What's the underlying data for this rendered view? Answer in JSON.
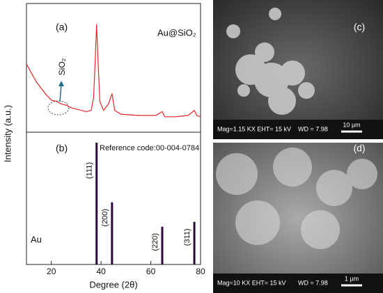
{
  "chart_data": [
    {
      "type": "line",
      "title": "(a)",
      "annotations": [
        "Au@SiO₂",
        "SiO₂"
      ],
      "color": "#e8262b",
      "x": [
        10,
        12,
        14,
        16,
        18,
        20,
        22,
        24,
        26,
        28,
        30,
        32,
        34,
        36,
        37,
        37.6,
        38.2,
        38.8,
        39.5,
        41,
        43,
        44.4,
        45.5,
        48,
        55,
        62,
        64.6,
        65.6,
        70,
        75,
        77.5,
        78.5,
        80
      ],
      "values": [
        53,
        46,
        39,
        34,
        29,
        25,
        24,
        22,
        21,
        19,
        18,
        17,
        16,
        17,
        27,
        54,
        84,
        54,
        24,
        17,
        22,
        30,
        17,
        14,
        13,
        13,
        16,
        12,
        12,
        13,
        17,
        13,
        12
      ],
      "xlim": [
        10,
        80
      ],
      "ylim": [
        0,
        100
      ]
    },
    {
      "type": "stick",
      "title": "(b)",
      "annotation": "Reference code:00-004-0784",
      "phase": "Au",
      "color": "#2a0a3a",
      "x": [
        38.2,
        44.4,
        64.6,
        77.5
      ],
      "values": [
        100,
        51,
        31,
        35
      ],
      "peak_labels": [
        "(111)",
        "(200)",
        "(220)",
        "(311)"
      ],
      "xlim": [
        10,
        80
      ],
      "ylim": [
        0,
        100
      ],
      "xticks": [
        20,
        40,
        60,
        80
      ],
      "xlabel": "Degree (2θ)",
      "ylabel": "Intensity (a.u.)"
    }
  ],
  "images": [
    {
      "label": "(c)",
      "info": "Mag=1.15 KX EHT= 15 kV",
      "wd": "WD = 7.98",
      "scale": "10 µm"
    },
    {
      "label": "(d)",
      "info": "Mag=10 KX EHT= 15 kV",
      "wd": "WD = 7.98",
      "scale": "1 µm"
    }
  ]
}
